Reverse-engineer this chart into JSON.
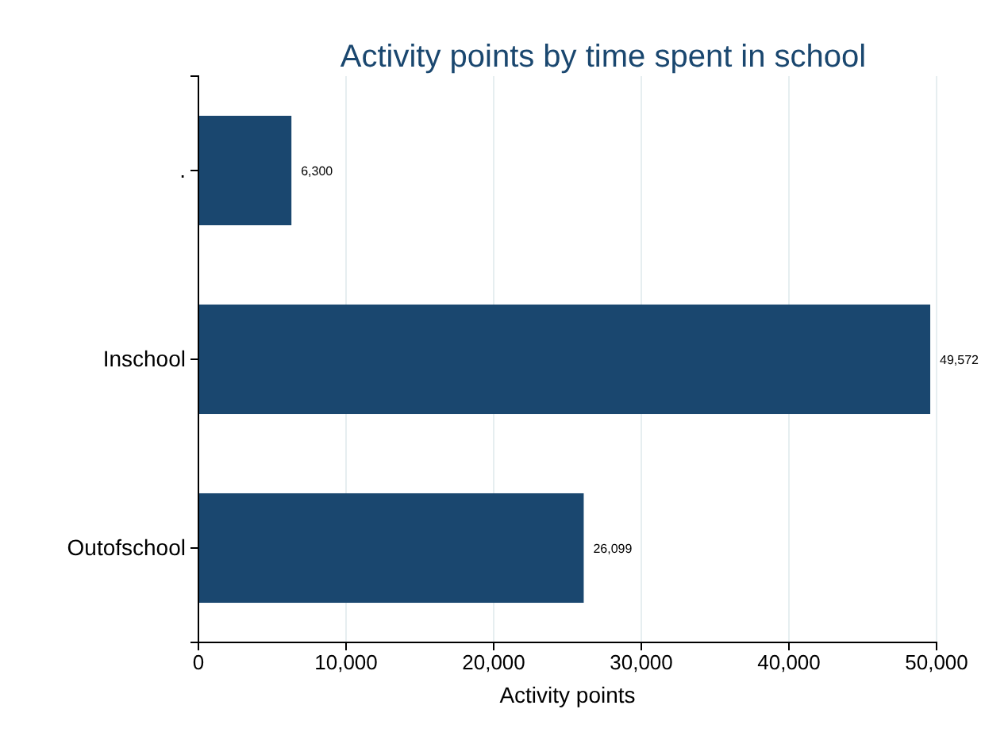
{
  "chart_data": {
    "type": "bar",
    "orientation": "horizontal",
    "title": "Activity points by time spent in school",
    "xlabel": "Activity points",
    "categories": [
      ".",
      "Inschool",
      "Outofschool"
    ],
    "values": [
      6300,
      49572,
      26099
    ],
    "value_labels": [
      "6,300",
      "49,572",
      "26,099"
    ],
    "color": "#1a476f",
    "xlim": [
      0,
      50000
    ],
    "xticks": [
      {
        "value": 0,
        "label": "0"
      },
      {
        "value": 10000,
        "label": "10,000"
      },
      {
        "value": 20000,
        "label": "20,000"
      },
      {
        "value": 30000,
        "label": "30,000"
      },
      {
        "value": 40000,
        "label": "40,000"
      },
      {
        "value": 50000,
        "label": "50,000"
      }
    ],
    "grid": "x"
  }
}
